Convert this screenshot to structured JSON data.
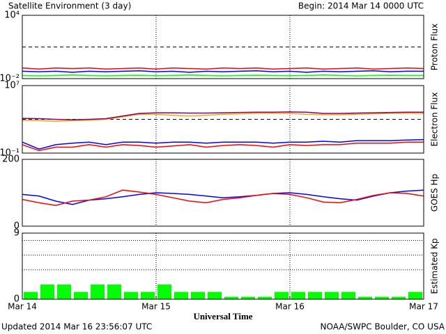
{
  "header": {
    "title": "Satellite Environment (3 day)",
    "begin": "Begin:  2014 Mar 14 0000 UTC"
  },
  "footer": {
    "updated": "Updated 2014 Mar 16 23:56:07 UTC",
    "credit": "NOAA/SWPC Boulder, CO USA"
  },
  "chart_data": [
    {
      "type": "line",
      "ylabel": "Proton Flux",
      "log": true,
      "ylim": [
        0.01,
        10000
      ],
      "yticks": [
        {
          "value": 10000,
          "label": "10⁴"
        },
        {
          "value": 0.01,
          "label": "10⁻²"
        }
      ],
      "hlines": [
        10
      ],
      "xlim": [
        0,
        72
      ],
      "x": [
        0,
        3,
        6,
        9,
        12,
        15,
        18,
        21,
        24,
        27,
        30,
        33,
        36,
        39,
        42,
        45,
        48,
        51,
        54,
        57,
        60,
        63,
        66,
        69,
        72
      ],
      "series": [
        {
          "color": "#00ff00",
          "values": [
            0.02,
            0.018,
            0.02,
            0.022,
            0.02,
            0.018,
            0.02,
            0.021,
            0.019,
            0.02,
            0.022,
            0.02,
            0.018,
            0.02,
            0.021,
            0.02,
            0.019,
            0.02,
            0.022,
            0.02,
            0.018,
            0.02,
            0.021,
            0.02,
            0.02
          ]
        },
        {
          "color": "#0000ff",
          "values": [
            0.05,
            0.045,
            0.05,
            0.04,
            0.05,
            0.045,
            0.05,
            0.055,
            0.045,
            0.05,
            0.04,
            0.05,
            0.045,
            0.05,
            0.055,
            0.045,
            0.05,
            0.04,
            0.05,
            0.045,
            0.05,
            0.055,
            0.045,
            0.05,
            0.05
          ]
        },
        {
          "color": "#ff0000",
          "values": [
            0.1,
            0.08,
            0.1,
            0.09,
            0.1,
            0.08,
            0.09,
            0.1,
            0.08,
            0.1,
            0.09,
            0.08,
            0.1,
            0.09,
            0.1,
            0.08,
            0.09,
            0.1,
            0.08,
            0.09,
            0.1,
            0.08,
            0.09,
            0.1,
            0.09
          ]
        }
      ]
    },
    {
      "type": "line",
      "ylabel": "Electron Flux",
      "log": true,
      "ylim": [
        0.1,
        10000000
      ],
      "yticks": [
        {
          "value": 10000000,
          "label": "10⁷"
        },
        {
          "value": 0.1,
          "label": "10⁻¹"
        }
      ],
      "hlines": [
        1000
      ],
      "xlim": [
        0,
        72
      ],
      "x": [
        0,
        3,
        6,
        9,
        12,
        15,
        18,
        21,
        24,
        27,
        30,
        33,
        36,
        39,
        42,
        45,
        48,
        51,
        54,
        57,
        60,
        63,
        66,
        69,
        72
      ],
      "series": [
        {
          "color": "#ffa500",
          "values": [
            800,
            700,
            600,
            700,
            800,
            1000,
            2000,
            4000,
            4000,
            3000,
            2500,
            3000,
            4000,
            4500,
            5000,
            5000,
            5000,
            4000,
            3500,
            3500,
            4000,
            4500,
            5000,
            5000,
            5000
          ]
        },
        {
          "color": "#800080",
          "values": [
            1300,
            1200,
            1000,
            900,
            1000,
            1200,
            2500,
            5000,
            6000,
            6000,
            5500,
            5500,
            6000,
            6500,
            7000,
            7000,
            7500,
            7000,
            5000,
            5000,
            5500,
            6000,
            6500,
            7000,
            7000
          ]
        },
        {
          "color": "#0000ff",
          "values": [
            2,
            0.3,
            1,
            1.5,
            2,
            1,
            2,
            2,
            1.5,
            2,
            2,
            1.5,
            2,
            2,
            2,
            1.5,
            2,
            2,
            2.5,
            2,
            3,
            3,
            3,
            3.5,
            4
          ]
        },
        {
          "color": "#ff0000",
          "values": [
            1,
            0.2,
            0.5,
            0.5,
            1,
            0.5,
            1,
            0.8,
            0.5,
            0.7,
            1,
            0.5,
            0.8,
            1,
            0.8,
            0.5,
            1,
            0.8,
            1,
            1,
            1.5,
            1.5,
            1.5,
            2,
            2
          ]
        }
      ]
    },
    {
      "type": "line",
      "ylabel": "GOES Hp",
      "ylim": [
        0,
        200
      ],
      "yticks": [
        200,
        0
      ],
      "xlim": [
        0,
        72
      ],
      "x": [
        0,
        3,
        6,
        9,
        12,
        15,
        18,
        21,
        24,
        27,
        30,
        33,
        36,
        39,
        42,
        45,
        48,
        51,
        54,
        57,
        60,
        63,
        66,
        69,
        72
      ],
      "series": [
        {
          "color": "#0000ff",
          "values": [
            95,
            90,
            75,
            65,
            78,
            82,
            88,
            95,
            100,
            98,
            95,
            90,
            85,
            88,
            92,
            98,
            100,
            95,
            88,
            82,
            78,
            90,
            100,
            105,
            108
          ]
        },
        {
          "color": "#ff0000",
          "values": [
            80,
            70,
            62,
            75,
            78,
            88,
            108,
            102,
            95,
            85,
            75,
            70,
            80,
            85,
            92,
            98,
            95,
            85,
            72,
            70,
            80,
            92,
            100,
            98,
            90
          ]
        }
      ]
    },
    {
      "type": "bar",
      "ylabel": "Estimated Kp",
      "ylim": [
        0,
        9
      ],
      "yticks": [
        9,
        0
      ],
      "hlines": [
        4,
        6,
        8
      ],
      "xlim": [
        0,
        72
      ],
      "bar_width": 3,
      "color": "#00ff00",
      "x": [
        0,
        3,
        6,
        9,
        12,
        15,
        18,
        21,
        24,
        27,
        30,
        33,
        36,
        39,
        42,
        45,
        48,
        51,
        54,
        57,
        60,
        63,
        66,
        69
      ],
      "values": [
        1,
        2,
        2,
        1,
        2,
        2,
        1,
        1,
        2,
        1,
        1,
        1,
        0.33,
        0.33,
        0.33,
        1,
        1,
        1,
        1,
        1,
        0.33,
        0.33,
        0.33,
        1
      ],
      "xlabel": "Universal Time",
      "xticks": [
        {
          "value": 0,
          "label": "Mar 14"
        },
        {
          "value": 24,
          "label": "Mar 15"
        },
        {
          "value": 48,
          "label": "Mar 16"
        },
        {
          "value": 72,
          "label": "Mar 17"
        }
      ]
    }
  ]
}
